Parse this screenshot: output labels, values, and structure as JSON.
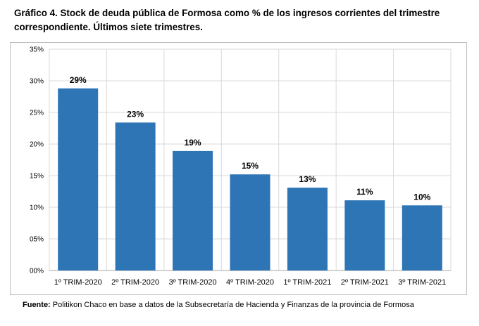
{
  "title": "Gráfico 4. Stock de deuda pública de Formosa como % de los ingresos corrientes del trimestre correspondiente. Últimos siete trimestres.",
  "source": {
    "label": "Fuente:",
    "text": "Politikon Chaco en base a datos de la Subsecretaría de Hacienda y Finanzas de la provincia de Formosa"
  },
  "chart_data": {
    "type": "bar",
    "categories": [
      "1º TRIM-2020",
      "2º TRIM-2020",
      "3º TRIM-2020",
      "4º TRIM-2020",
      "1º TRIM-2021",
      "2º TRIM-2021",
      "3º TRIM-2021"
    ],
    "values": [
      28.8,
      23.4,
      18.9,
      15.2,
      13.1,
      11.1,
      10.3
    ],
    "data_labels": [
      "29%",
      "23%",
      "19%",
      "15%",
      "13%",
      "11%",
      "10%"
    ],
    "ylim": [
      0,
      35
    ],
    "yticks": [
      0,
      5,
      10,
      15,
      20,
      25,
      30,
      35
    ],
    "ytick_labels": [
      "00%",
      "05%",
      "10%",
      "15%",
      "20%",
      "25%",
      "30%",
      "35%"
    ],
    "grid": true,
    "bar_color": "#2e75b6",
    "grid_color": "#d9d9d9"
  }
}
